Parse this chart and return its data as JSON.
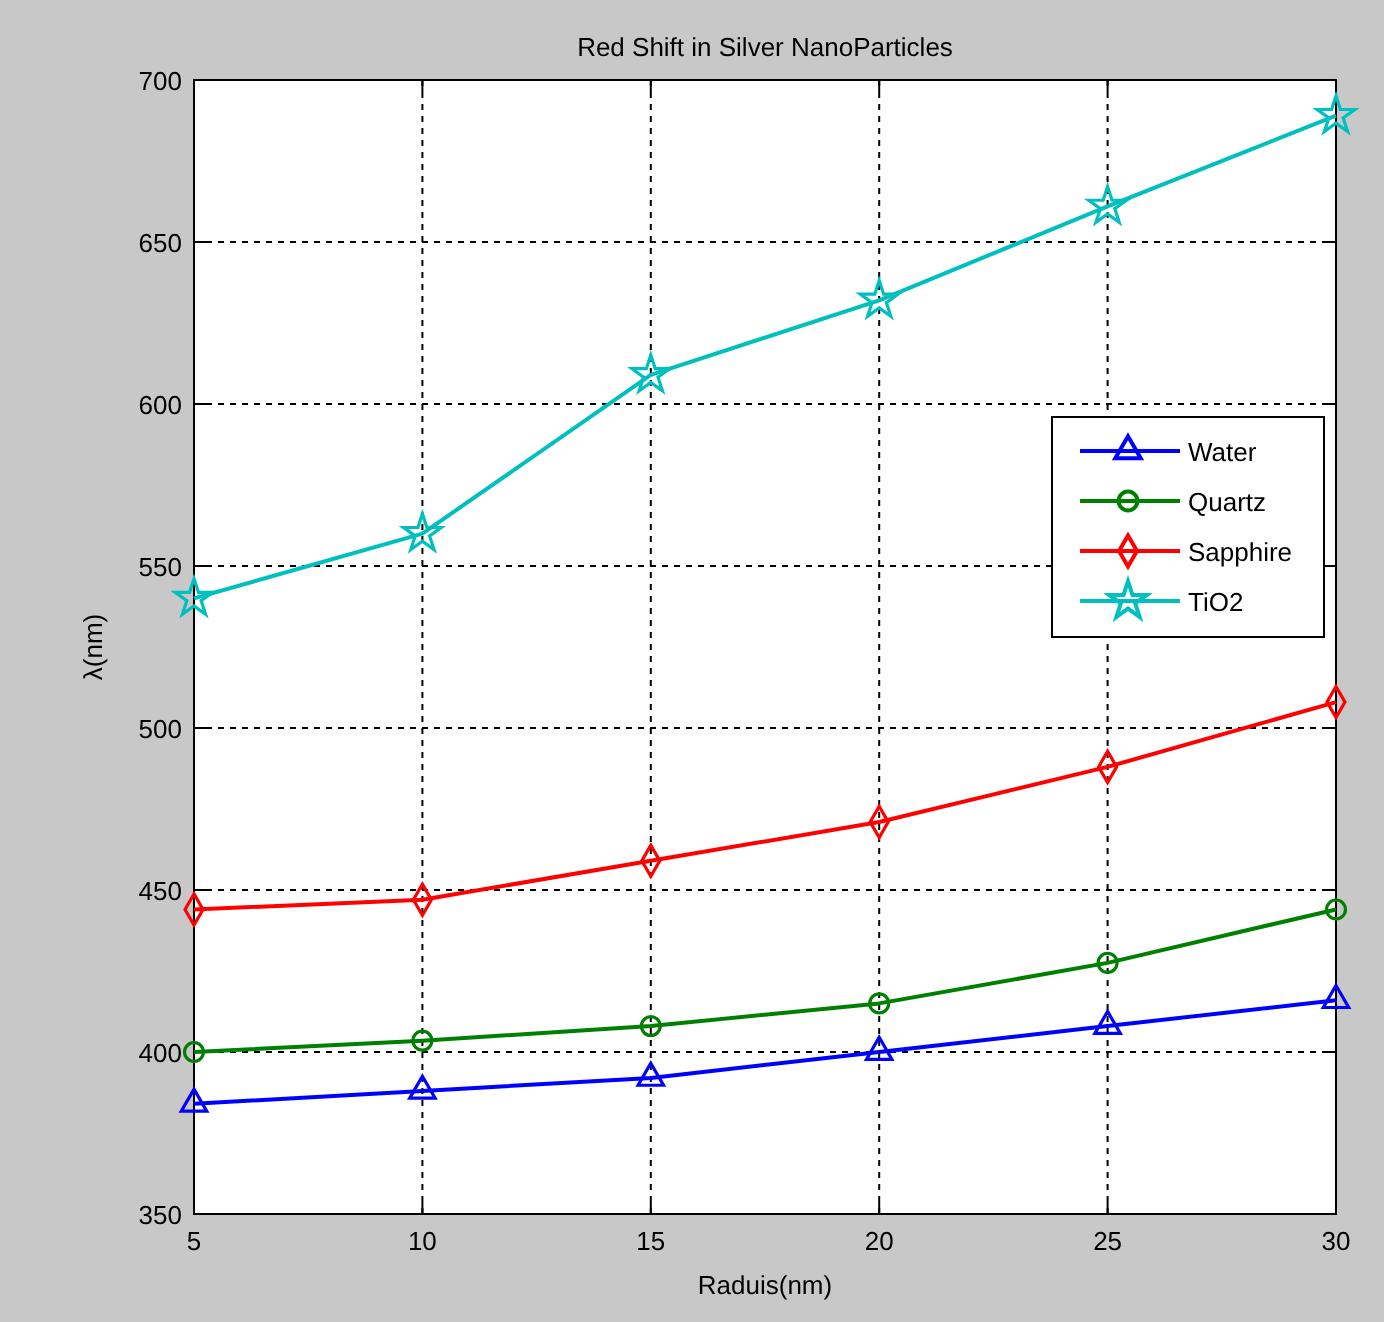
{
  "chart_data": {
    "type": "line",
    "title": "Red Shift in Silver NanoParticles",
    "xlabel": "Raduis(nm)",
    "ylabel": "λ(nm)",
    "x": [
      5,
      10,
      15,
      20,
      25,
      30
    ],
    "xlim": [
      5,
      30
    ],
    "xticks": [
      5,
      10,
      15,
      20,
      25,
      30
    ],
    "ylim": [
      350,
      700
    ],
    "yticks": [
      350,
      400,
      450,
      500,
      550,
      600,
      650,
      700
    ],
    "grid": true,
    "legend": "right",
    "line_style": "solid",
    "series": [
      {
        "name": "Water",
        "color": "#0000ff",
        "marker": "triangle",
        "values": [
          384,
          388,
          392,
          400,
          408,
          416
        ]
      },
      {
        "name": "Quartz",
        "color": "#008000",
        "marker": "circle",
        "values": [
          400,
          403.5,
          408,
          415,
          427.5,
          444
        ]
      },
      {
        "name": "Sapphire",
        "color": "#ff0000",
        "marker": "diamond",
        "values": [
          444,
          447,
          459,
          471,
          488,
          508
        ]
      },
      {
        "name": "TiO2",
        "color": "#00bfbf",
        "marker": "star",
        "values": [
          540,
          560,
          609,
          632,
          661,
          689
        ]
      }
    ]
  }
}
